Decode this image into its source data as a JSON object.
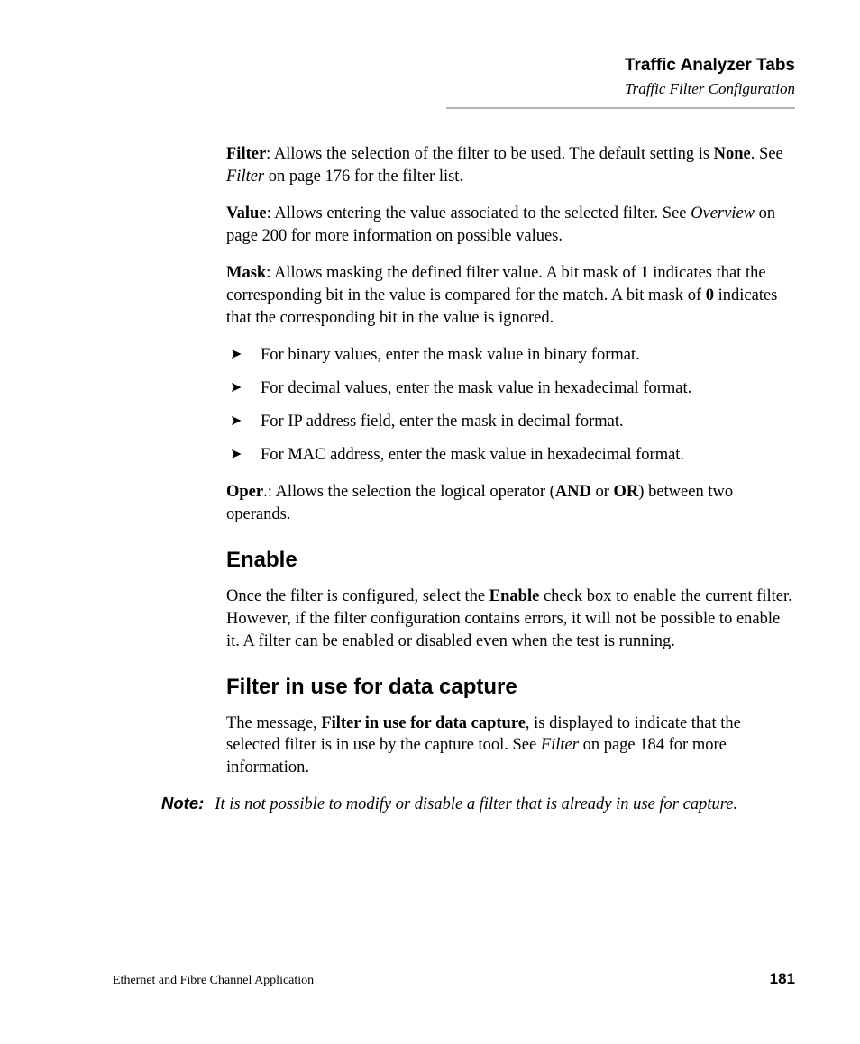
{
  "header": {
    "title": "Traffic Analyzer Tabs",
    "subtitle": "Traffic Filter Configuration"
  },
  "filter": {
    "label": "Filter",
    "text1": ": Allows the selection of the filter to be used. The default setting is ",
    "default": "None",
    "text2": ". See ",
    "ref": "Filter",
    "text3": " on page 176 for the filter list."
  },
  "value": {
    "label": "Value",
    "text1": ": Allows entering the value associated to the selected filter. See ",
    "ref": "Overview",
    "text2": " on page 200 for more information on possible values."
  },
  "mask": {
    "label": "Mask",
    "text1": ": Allows masking the defined filter value. A bit mask of ",
    "one": "1",
    "text2": " indicates that the corresponding bit in the value is compared for the match. A bit mask of ",
    "zero": "0",
    "text3": " indicates that the corresponding bit in the value is ignored."
  },
  "bullets": {
    "b1": "For binary values, enter the mask value in binary format.",
    "b2": "For decimal values, enter the mask value in hexadecimal format.",
    "b3": "For IP address field, enter the mask in decimal format.",
    "b4": "For MAC address, enter the mask value in hexadecimal format."
  },
  "oper": {
    "label": "Oper",
    "text1": ".: Allows the selection the logical operator (",
    "and": "AND",
    "text2": " or ",
    "or": "OR",
    "text3": ") between two operands."
  },
  "enable": {
    "heading": "Enable",
    "text1": "Once the filter is configured, select the ",
    "label": "Enable",
    "text2": " check box to enable the current filter. However, if the filter configuration contains errors, it will not be possible to enable it. A filter can be enabled or disabled even when the test is running."
  },
  "capture": {
    "heading": "Filter in use for data capture",
    "text1": "The message, ",
    "label": "Filter in use for data capture",
    "text2": ", is displayed to indicate that the selected filter is in use by the capture tool. See ",
    "ref": "Filter",
    "text3": " on page 184 for more information."
  },
  "note": {
    "label": "Note:",
    "text": "It is not possible to modify or disable a filter that is already in use for capture."
  },
  "footer": {
    "left": "Ethernet and Fibre Channel Application",
    "page": "181"
  }
}
